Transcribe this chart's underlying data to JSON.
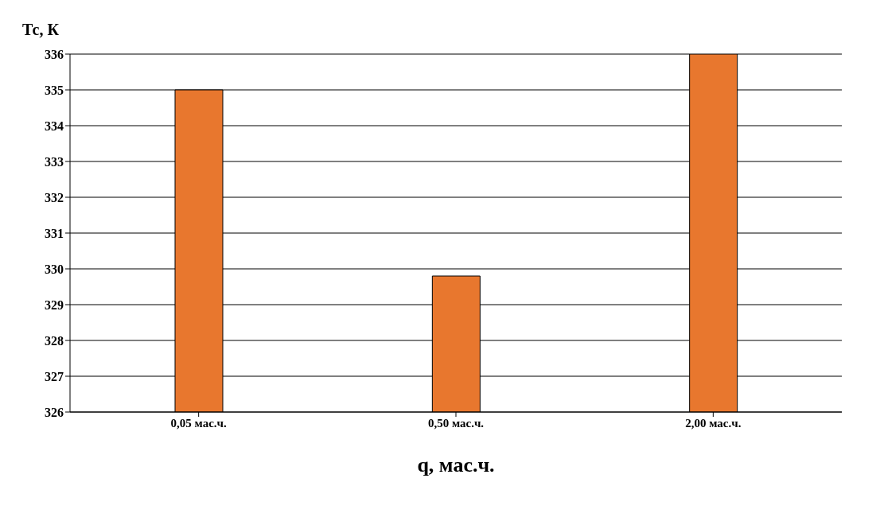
{
  "chart_data": {
    "type": "bar",
    "ylabel": "Тс, К",
    "xlabel": "q, мас.ч.",
    "categories": [
      "0,05 мас.ч.",
      "0,50 мас.ч.",
      "2,00 мас.ч."
    ],
    "values": [
      335,
      329.8,
      336
    ],
    "color": "#e8772e",
    "ylim": [
      326,
      336
    ],
    "yticks": [
      326,
      327,
      328,
      329,
      330,
      331,
      332,
      333,
      334,
      335,
      336
    ],
    "grid": "y"
  }
}
